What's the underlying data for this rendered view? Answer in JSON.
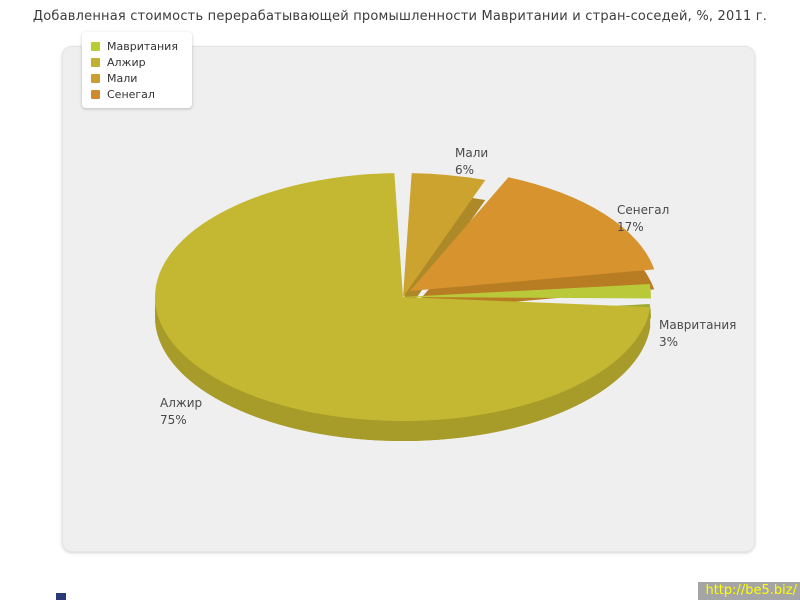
{
  "title": "Добавленная стоимость перерабатывающей промышленности Мавритании и стран-соседей, %, 2011 г.",
  "watermark": "http://be5.biz/",
  "chart_data": {
    "type": "pie",
    "title": "Добавленная стоимость перерабатывающей промышленности Мавритании и стран-соседей, %, 2011 г.",
    "unit": "%",
    "year": "2011",
    "legend_position": "top-left",
    "labels_shown": true,
    "start_angle_deg": 0,
    "categories": [
      "Мали",
      "Сенегал",
      "Мавритания",
      "Алжир"
    ],
    "values": [
      6,
      17,
      3,
      75
    ],
    "slices": [
      {
        "name": "Мали",
        "value": 6,
        "pct_label": "6%",
        "color": "#cda32f",
        "side_color": "#ad8a27"
      },
      {
        "name": "Сенегал",
        "value": 17,
        "pct_label": "17%",
        "color": "#d6932e",
        "side_color": "#b87c23"
      },
      {
        "name": "Мавритания",
        "value": 3,
        "pct_label": "3%",
        "color": "#bac93a",
        "side_color": "#9dab2f"
      },
      {
        "name": "Алжир",
        "value": 75,
        "pct_label": "75%",
        "color": "#c4b832",
        "side_color": "#a79c29"
      }
    ],
    "legend": [
      {
        "label": "Мавритания",
        "color": "#b9cc33"
      },
      {
        "label": "Алжир",
        "color": "#c1b033"
      },
      {
        "label": "Мали",
        "color": "#ca9e33"
      },
      {
        "label": "Сенегал",
        "color": "#d0892e"
      }
    ]
  }
}
